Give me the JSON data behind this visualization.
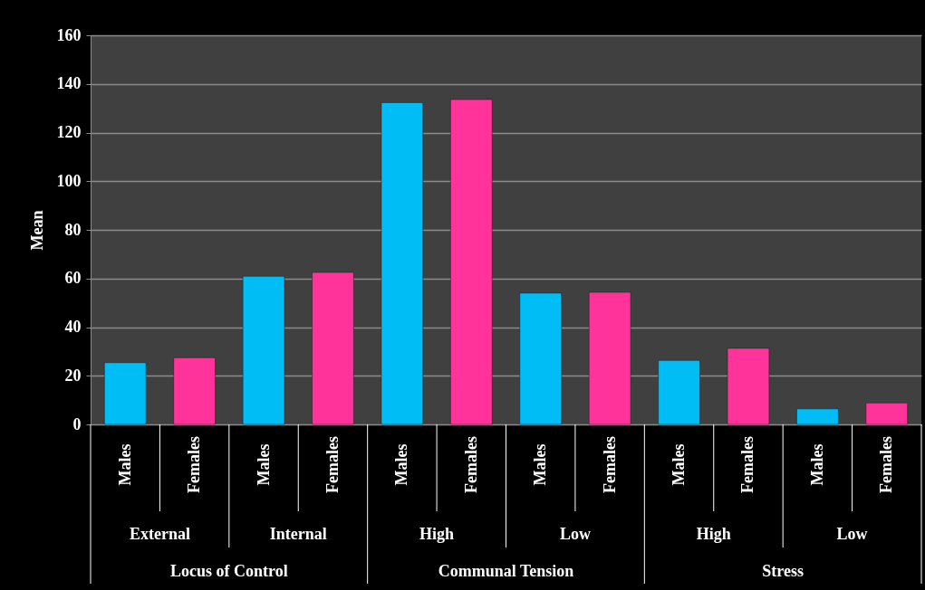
{
  "chart_data": {
    "type": "bar",
    "ylabel": "Mean",
    "categories": [
      "Males",
      "Females",
      "Males",
      "Females",
      "Males",
      "Females",
      "Males",
      "Females",
      "Males",
      "Females",
      "Males",
      "Females"
    ],
    "values": [
      25.4,
      27.4,
      60.9,
      62.5,
      132.3,
      133.6,
      54,
      54.3,
      26.3,
      31.3,
      6.4,
      8.8
    ],
    "colors": [
      "#00bdf6",
      "#ff3399",
      "#00bdf6",
      "#ff3399",
      "#00bdf6",
      "#ff3399",
      "#00bdf6",
      "#ff3399",
      "#00bdf6",
      "#ff3399",
      "#00bdf6",
      "#ff3399"
    ],
    "ylim": [
      0,
      160
    ],
    "yticks": [
      0,
      20,
      40,
      60,
      80,
      100,
      120,
      140,
      160
    ],
    "grid": "y",
    "annotations": [
      "External",
      "Internal",
      "High",
      "Low",
      "High",
      "Low",
      "Locus of Control",
      "Communal Tension",
      "Stress"
    ]
  }
}
